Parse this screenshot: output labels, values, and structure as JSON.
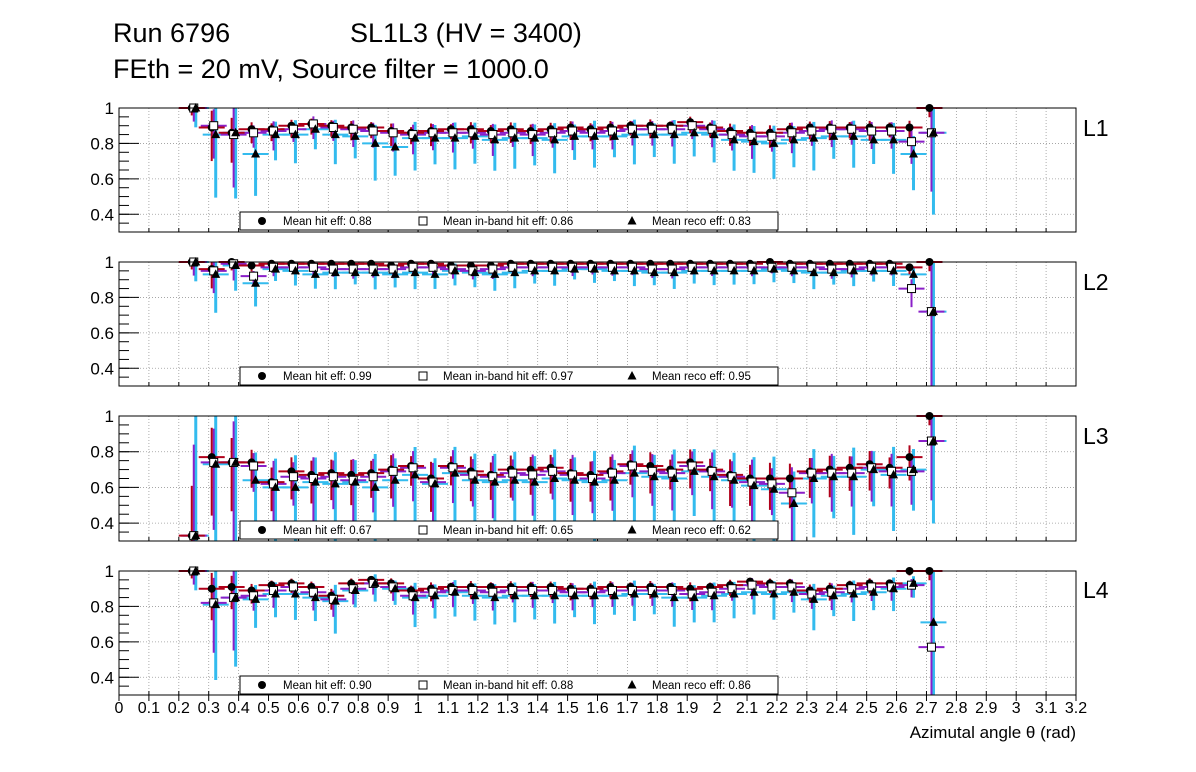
{
  "header": {
    "run": "Run 6796",
    "chamber": "SL1L3 (HV = 3400)",
    "settings": "FEth = 20 mV, Source filter = 1000.0"
  },
  "xaxis": {
    "title": "Azimutal angle θ (rad)",
    "ticks": [
      "0",
      "0.1",
      "0.2",
      "0.3",
      "0.4",
      "0.5",
      "0.6",
      "0.7",
      "0.8",
      "0.9",
      "1",
      "1.1",
      "1.2",
      "1.3",
      "1.4",
      "1.5",
      "1.6",
      "1.7",
      "1.8",
      "1.9",
      "2",
      "2.1",
      "2.2",
      "2.3",
      "2.4",
      "2.5",
      "2.6",
      "2.7",
      "2.8",
      "2.9",
      "3",
      "3.1",
      "3.2"
    ],
    "tick_values": [
      0,
      0.1,
      0.2,
      0.3,
      0.4,
      0.5,
      0.6,
      0.7,
      0.8,
      0.9,
      1,
      1.1,
      1.2,
      1.3,
      1.4,
      1.5,
      1.6,
      1.7,
      1.8,
      1.9,
      2,
      2.1,
      2.2,
      2.3,
      2.4,
      2.5,
      2.6,
      2.7,
      2.8,
      2.9,
      3,
      3.1,
      3.2
    ]
  },
  "colors": {
    "hit": "#000000",
    "inband": "#ffffff",
    "reco": "#000000",
    "err_hit": "#b0001a",
    "err_inband": "#8a1fc8",
    "err_reco": "#33bbee",
    "grid": "#999999"
  },
  "chart_data": {
    "type": "scatter",
    "xlim": [
      0,
      3.2
    ],
    "ylim": [
      0.3,
      1.0
    ],
    "yticks": [
      "0.4",
      "0.6",
      "0.8",
      "1"
    ],
    "ytick_values": [
      0.4,
      0.6,
      0.8,
      1.0
    ],
    "x": [
      0.25,
      0.3167,
      0.3833,
      0.45,
      0.5167,
      0.5833,
      0.65,
      0.7167,
      0.7833,
      0.85,
      0.9167,
      0.9833,
      1.05,
      1.1167,
      1.1833,
      1.25,
      1.3167,
      1.3833,
      1.45,
      1.5167,
      1.5833,
      1.65,
      1.7167,
      1.7833,
      1.85,
      1.9167,
      1.9833,
      2.05,
      2.1167,
      2.1833,
      2.25,
      2.3167,
      2.3833,
      2.45,
      2.5167,
      2.5833,
      2.65,
      2.7167
    ],
    "layers": [
      {
        "name": "L1",
        "legend": [
          "Mean hit  eff: 0.88",
          "Mean in-band hit eff: 0.86",
          "Mean reco eff: 0.83"
        ],
        "series": [
          {
            "name": "Mean hit eff",
            "marker": "circle",
            "values": [
              1.0,
              0.89,
              0.86,
              0.88,
              0.88,
              0.9,
              0.91,
              0.9,
              0.89,
              0.89,
              0.87,
              0.86,
              0.87,
              0.88,
              0.88,
              0.87,
              0.88,
              0.87,
              0.88,
              0.89,
              0.88,
              0.89,
              0.9,
              0.9,
              0.9,
              0.92,
              0.89,
              0.87,
              0.86,
              0.86,
              0.88,
              0.89,
              0.89,
              0.89,
              0.89,
              0.89,
              0.89,
              1.0
            ]
          },
          {
            "name": "Mean in-band hit eff",
            "marker": "square",
            "values": [
              1.0,
              0.9,
              0.85,
              0.86,
              0.87,
              0.88,
              0.91,
              0.89,
              0.88,
              0.87,
              0.86,
              0.85,
              0.86,
              0.86,
              0.86,
              0.85,
              0.86,
              0.85,
              0.86,
              0.87,
              0.86,
              0.87,
              0.88,
              0.88,
              0.88,
              0.9,
              0.88,
              0.85,
              0.84,
              0.84,
              0.86,
              0.87,
              0.88,
              0.88,
              0.87,
              0.87,
              0.81,
              0.86
            ]
          },
          {
            "name": "Mean reco eff",
            "marker": "triangle",
            "values": [
              1.0,
              0.85,
              0.86,
              0.74,
              0.85,
              0.85,
              0.88,
              0.85,
              0.84,
              0.8,
              0.78,
              0.83,
              0.83,
              0.83,
              0.84,
              0.82,
              0.83,
              0.83,
              0.82,
              0.84,
              0.84,
              0.84,
              0.85,
              0.85,
              0.85,
              0.86,
              0.85,
              0.82,
              0.81,
              0.8,
              0.82,
              0.83,
              0.84,
              0.84,
              0.82,
              0.82,
              0.74,
              0.86
            ]
          }
        ]
      },
      {
        "name": "L2",
        "legend": [
          "Mean hit  eff: 0.99",
          "Mean in-band hit eff: 0.97",
          "Mean reco eff: 0.95"
        ],
        "series": [
          {
            "name": "Mean hit eff",
            "marker": "circle",
            "values": [
              1.0,
              0.96,
              1.0,
              0.98,
              0.99,
              0.99,
              0.99,
              0.99,
              0.99,
              0.99,
              0.98,
              0.99,
              0.99,
              0.98,
              0.98,
              0.98,
              0.99,
              0.99,
              0.99,
              0.99,
              0.99,
              0.99,
              0.99,
              0.99,
              0.99,
              0.99,
              0.99,
              0.99,
              0.99,
              1.0,
              0.99,
              0.99,
              0.99,
              0.99,
              0.99,
              0.99,
              0.97,
              1.0
            ]
          },
          {
            "name": "Mean in-band hit eff",
            "marker": "square",
            "values": [
              1.0,
              0.95,
              0.99,
              0.92,
              0.97,
              0.97,
              0.97,
              0.96,
              0.96,
              0.96,
              0.96,
              0.97,
              0.97,
              0.96,
              0.95,
              0.96,
              0.97,
              0.97,
              0.97,
              0.97,
              0.97,
              0.97,
              0.97,
              0.96,
              0.96,
              0.97,
              0.97,
              0.97,
              0.97,
              0.97,
              0.97,
              0.97,
              0.96,
              0.96,
              0.97,
              0.97,
              0.85,
              0.72
            ]
          },
          {
            "name": "Mean reco eff",
            "marker": "triangle",
            "values": [
              1.0,
              0.93,
              0.98,
              0.88,
              0.96,
              0.95,
              0.93,
              0.94,
              0.94,
              0.94,
              0.93,
              0.94,
              0.93,
              0.95,
              0.94,
              0.93,
              0.94,
              0.95,
              0.95,
              0.96,
              0.96,
              0.95,
              0.95,
              0.94,
              0.94,
              0.95,
              0.95,
              0.95,
              0.95,
              0.96,
              0.95,
              0.94,
              0.94,
              0.95,
              0.95,
              0.95,
              0.93,
              0.72
            ]
          }
        ]
      },
      {
        "name": "L3",
        "legend": [
          "Mean hit  eff: 0.67",
          "Mean in-band hit eff: 0.65",
          "Mean reco eff: 0.62"
        ],
        "series": [
          {
            "name": "Mean hit eff",
            "marker": "circle",
            "values": [
              0.33,
              0.77,
              0.74,
              0.74,
              0.63,
              0.69,
              0.67,
              0.68,
              0.67,
              0.68,
              0.7,
              0.72,
              0.65,
              0.72,
              0.69,
              0.67,
              0.7,
              0.7,
              0.71,
              0.68,
              0.67,
              0.69,
              0.73,
              0.72,
              0.7,
              0.74,
              0.7,
              0.67,
              0.65,
              0.65,
              0.65,
              0.69,
              0.7,
              0.71,
              0.73,
              0.71,
              0.77,
              1.0
            ]
          },
          {
            "name": "Mean in-band hit eff",
            "marker": "square",
            "values": [
              0.33,
              0.74,
              0.74,
              0.72,
              0.62,
              0.66,
              0.65,
              0.66,
              0.64,
              0.66,
              0.69,
              0.71,
              0.63,
              0.71,
              0.67,
              0.66,
              0.68,
              0.67,
              0.69,
              0.67,
              0.65,
              0.68,
              0.72,
              0.69,
              0.68,
              0.72,
              0.69,
              0.66,
              0.63,
              0.62,
              0.57,
              0.68,
              0.68,
              0.68,
              0.71,
              0.69,
              0.69,
              0.86
            ]
          },
          {
            "name": "Mean reco eff",
            "marker": "triangle",
            "values": [
              0.33,
              0.73,
              0.74,
              0.64,
              0.6,
              0.6,
              0.63,
              0.62,
              0.63,
              0.6,
              0.64,
              0.67,
              0.62,
              0.68,
              0.64,
              0.63,
              0.64,
              0.63,
              0.65,
              0.64,
              0.63,
              0.64,
              0.68,
              0.66,
              0.65,
              0.69,
              0.66,
              0.64,
              0.61,
              0.59,
              0.51,
              0.65,
              0.66,
              0.66,
              0.7,
              0.67,
              0.7,
              0.86
            ]
          }
        ]
      },
      {
        "name": "L4",
        "legend": [
          "Mean hit  eff: 0.90",
          "Mean in-band hit eff: 0.88",
          "Mean reco eff: 0.86"
        ],
        "series": [
          {
            "name": "Mean hit eff",
            "marker": "circle",
            "values": [
              1.0,
              0.9,
              0.91,
              0.89,
              0.92,
              0.93,
              0.91,
              0.86,
              0.93,
              0.95,
              0.93,
              0.89,
              0.9,
              0.91,
              0.91,
              0.91,
              0.91,
              0.91,
              0.91,
              0.9,
              0.9,
              0.91,
              0.91,
              0.91,
              0.91,
              0.9,
              0.91,
              0.92,
              0.94,
              0.93,
              0.93,
              0.89,
              0.9,
              0.92,
              0.93,
              0.93,
              1.0,
              1.0
            ]
          },
          {
            "name": "Mean in-band hit eff",
            "marker": "square",
            "values": [
              1.0,
              0.82,
              0.85,
              0.86,
              0.89,
              0.91,
              0.88,
              0.84,
              0.9,
              0.93,
              0.91,
              0.86,
              0.88,
              0.89,
              0.89,
              0.88,
              0.89,
              0.89,
              0.89,
              0.88,
              0.88,
              0.89,
              0.89,
              0.89,
              0.89,
              0.87,
              0.88,
              0.9,
              0.92,
              0.91,
              0.91,
              0.87,
              0.88,
              0.9,
              0.91,
              0.91,
              0.92,
              0.57
            ]
          },
          {
            "name": "Mean reco eff",
            "marker": "triangle",
            "values": [
              1.0,
              0.81,
              0.85,
              0.84,
              0.87,
              0.87,
              0.85,
              0.83,
              0.89,
              0.93,
              0.9,
              0.85,
              0.86,
              0.88,
              0.86,
              0.85,
              0.86,
              0.86,
              0.86,
              0.86,
              0.86,
              0.86,
              0.87,
              0.87,
              0.85,
              0.85,
              0.86,
              0.87,
              0.88,
              0.87,
              0.88,
              0.84,
              0.86,
              0.87,
              0.88,
              0.9,
              0.93,
              0.71
            ]
          }
        ]
      }
    ]
  }
}
